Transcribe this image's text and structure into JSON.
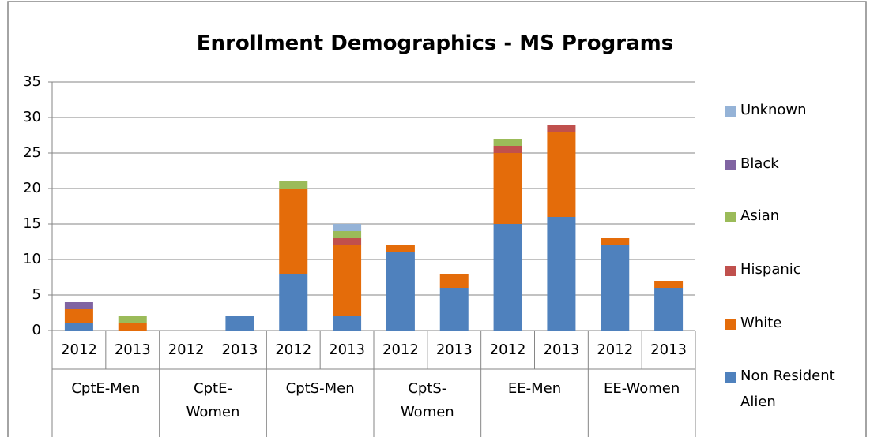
{
  "chart_data": {
    "type": "stacked_bar",
    "title": "Enrollment Demographics - MS Programs",
    "groups": [
      "CptE-Men",
      "CptE-Women",
      "CptS-Men",
      "CptS-Women",
      "EE-Men",
      "EE-Women"
    ],
    "categories": [
      "2012",
      "2013",
      "2012",
      "2013",
      "2012",
      "2013",
      "2012",
      "2013",
      "2012",
      "2013",
      "2012",
      "2013"
    ],
    "series": [
      {
        "name": "Non Resident Alien",
        "color": "#4f81bd",
        "values": [
          1,
          0,
          0,
          2,
          8,
          2,
          11,
          6,
          15,
          16,
          12,
          6
        ]
      },
      {
        "name": "White",
        "color": "#e46c0a",
        "values": [
          2,
          1,
          0,
          0,
          12,
          10,
          1,
          2,
          10,
          12,
          1,
          1
        ]
      },
      {
        "name": "Hispanic",
        "color": "#c0504d",
        "values": [
          0,
          0,
          0,
          0,
          0,
          1,
          0,
          0,
          1,
          1,
          0,
          0
        ]
      },
      {
        "name": "Asian",
        "color": "#9bbb59",
        "values": [
          0,
          1,
          0,
          0,
          1,
          1,
          0,
          0,
          1,
          0,
          0,
          0
        ]
      },
      {
        "name": "Black",
        "color": "#8064a2",
        "values": [
          1,
          0,
          0,
          0,
          0,
          0,
          0,
          0,
          0,
          0,
          0,
          0
        ]
      },
      {
        "name": "Unknown",
        "color": "#95b3d7",
        "values": [
          0,
          0,
          0,
          0,
          0,
          1,
          0,
          0,
          0,
          0,
          0,
          0
        ]
      }
    ],
    "ylim": [
      0,
      35
    ],
    "yticks": [
      0,
      5,
      10,
      15,
      20,
      25,
      30,
      35
    ],
    "grid": true,
    "legend": "right"
  }
}
